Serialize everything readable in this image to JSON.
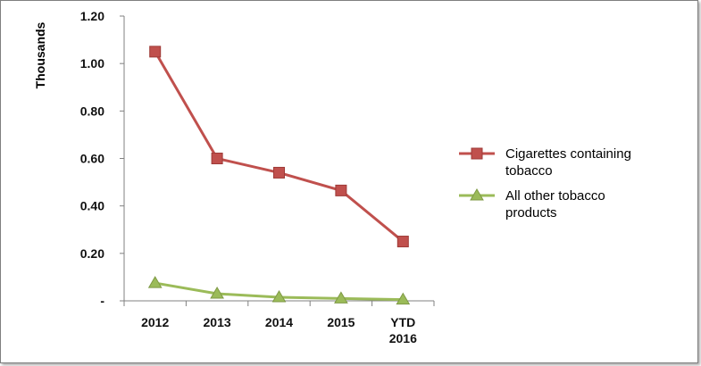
{
  "chart_data": {
    "type": "line",
    "title": "",
    "xlabel": "",
    "ylabel": "Thousands",
    "categories": [
      [
        "2012"
      ],
      [
        "2013"
      ],
      [
        "2014"
      ],
      [
        "2015"
      ],
      [
        "YTD",
        "2016"
      ]
    ],
    "y_ticks": [
      "-",
      "0.20",
      "0.40",
      "0.60",
      "0.80",
      "1.00",
      "1.20"
    ],
    "ylim": [
      0,
      1.2
    ],
    "grid": false,
    "legend_position": "right",
    "series": [
      {
        "name": "Cigarettes containing tobacco",
        "legend_lines": [
          "Cigarettes containing",
          "tobacco"
        ],
        "values": [
          1.05,
          0.6,
          0.54,
          0.465,
          0.25
        ],
        "color": "#c0504d",
        "marker": "square"
      },
      {
        "name": "All other tobacco products",
        "legend_lines": [
          "All other tobacco",
          "products"
        ],
        "values": [
          0.075,
          0.03,
          0.015,
          0.01,
          0.005
        ],
        "color": "#9bbb59",
        "marker": "triangle"
      }
    ]
  }
}
